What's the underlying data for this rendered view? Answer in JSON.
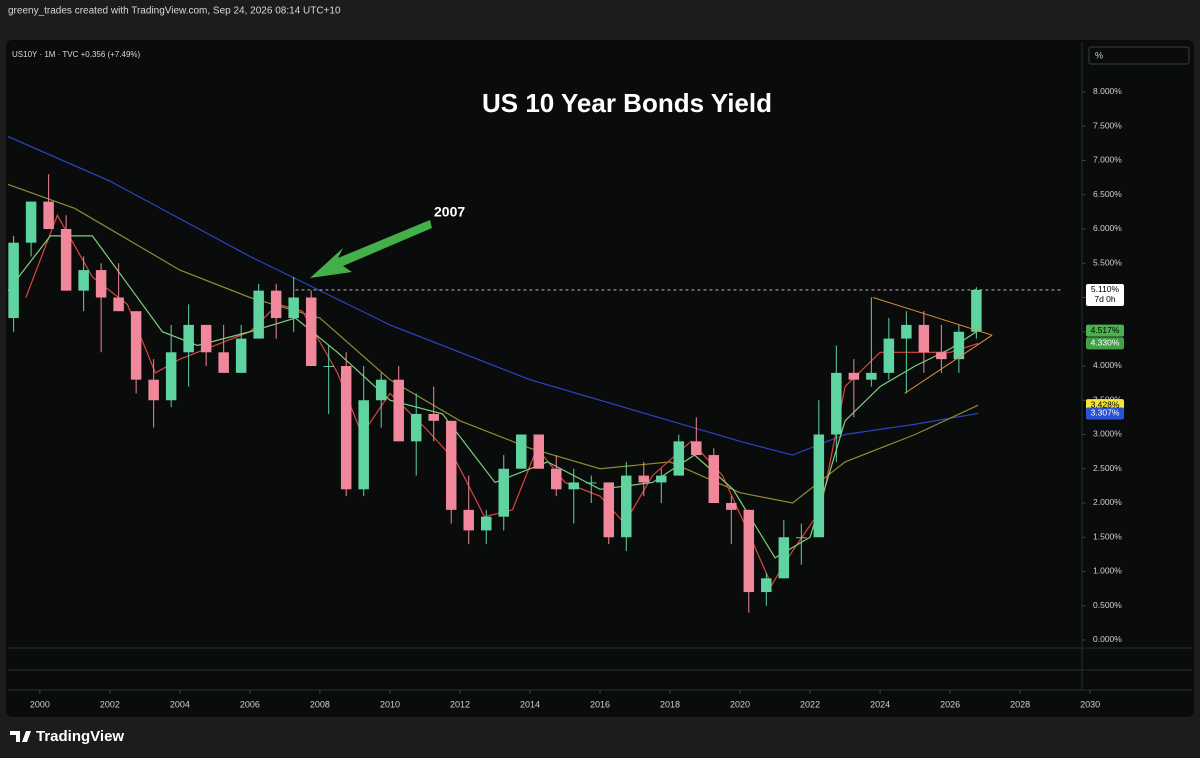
{
  "header": {
    "credit": "greeny_trades created with TradingView.com, Sep 24, 2026 08:14 UTC+10"
  },
  "toolbar": {
    "unit": "%"
  },
  "chart_data": {
    "type": "candlestick",
    "symbol": "US10Y · 1M · TVC  +0.356 (+7.49%)",
    "title": "US 10 Year Bonds Yield",
    "annotation": "2007",
    "up_color": "#5fd3a0",
    "down_color": "#f0879a",
    "candles": {
      "x": [
        1999.25,
        1999.75,
        2000.25,
        2000.75,
        2001.25,
        2001.75,
        2002.25,
        2002.75,
        2003.25,
        2003.75,
        2004.25,
        2004.75,
        2005.25,
        2005.75,
        2006.25,
        2006.75,
        2007.25,
        2007.75,
        2008.25,
        2008.75,
        2009.25,
        2009.75,
        2010.25,
        2010.75,
        2011.25,
        2011.75,
        2012.25,
        2012.75,
        2013.25,
        2013.75,
        2014.25,
        2014.75,
        2015.25,
        2015.75,
        2016.25,
        2016.75,
        2017.25,
        2017.75,
        2018.25,
        2018.75,
        2019.25,
        2019.75,
        2020.25,
        2020.75,
        2021.25,
        2021.75,
        2022.25,
        2022.75,
        2023.25,
        2023.75,
        2024.25,
        2024.75,
        2025.25,
        2025.75,
        2026.25,
        2026.75
      ],
      "open": [
        4.7,
        5.8,
        6.4,
        6.0,
        5.1,
        5.4,
        5.0,
        4.8,
        3.8,
        3.5,
        4.2,
        4.6,
        4.2,
        3.9,
        4.4,
        5.1,
        4.7,
        5.0,
        4.0,
        4.0,
        2.2,
        3.5,
        3.8,
        2.9,
        3.3,
        3.2,
        1.9,
        1.6,
        1.8,
        2.5,
        3.0,
        2.5,
        2.2,
        2.3,
        2.3,
        1.5,
        2.4,
        2.3,
        2.4,
        2.9,
        2.7,
        2.0,
        1.9,
        0.7,
        0.9,
        1.5,
        1.5,
        3.0,
        3.9,
        3.8,
        3.9,
        4.4,
        4.6,
        4.2,
        4.1,
        4.5
      ],
      "high": [
        5.9,
        6.4,
        6.8,
        6.2,
        5.6,
        5.5,
        5.5,
        4.8,
        4.1,
        4.6,
        4.9,
        4.6,
        4.6,
        4.6,
        5.2,
        5.2,
        5.3,
        5.1,
        4.3,
        4.2,
        4.0,
        3.9,
        4.0,
        3.6,
        3.7,
        3.2,
        2.4,
        1.9,
        2.7,
        3.0,
        3.0,
        2.7,
        2.5,
        2.4,
        2.3,
        2.6,
        2.6,
        2.5,
        3.0,
        3.25,
        2.8,
        2.1,
        1.9,
        0.98,
        1.75,
        1.7,
        3.5,
        4.3,
        4.1,
        5.0,
        4.7,
        4.8,
        4.8,
        4.6,
        4.6,
        5.15
      ],
      "low": [
        4.5,
        5.6,
        6.0,
        5.1,
        4.8,
        4.2,
        4.8,
        3.6,
        3.1,
        3.4,
        3.7,
        4.0,
        3.9,
        3.9,
        4.4,
        4.4,
        4.5,
        4.0,
        3.3,
        2.1,
        2.1,
        3.1,
        2.9,
        2.4,
        2.9,
        1.7,
        1.4,
        1.4,
        1.6,
        2.5,
        2.5,
        2.1,
        1.7,
        2.0,
        1.4,
        1.3,
        2.1,
        2.0,
        2.4,
        2.7,
        2.0,
        1.4,
        0.4,
        0.5,
        0.9,
        1.1,
        1.5,
        2.6,
        3.25,
        3.7,
        3.8,
        3.6,
        3.9,
        3.9,
        3.9,
        4.4
      ],
      "close": [
        5.8,
        6.4,
        6.0,
        5.1,
        5.4,
        5.0,
        4.8,
        3.8,
        3.5,
        4.2,
        4.6,
        4.2,
        3.9,
        4.4,
        5.1,
        4.7,
        5.0,
        4.0,
        4.0,
        2.2,
        3.5,
        3.8,
        2.9,
        3.3,
        3.2,
        1.9,
        1.6,
        1.8,
        2.5,
        3.0,
        2.5,
        2.2,
        2.3,
        2.3,
        1.5,
        2.4,
        2.3,
        2.4,
        2.9,
        2.7,
        2.0,
        1.9,
        0.7,
        0.9,
        1.5,
        1.5,
        3.0,
        3.9,
        3.8,
        3.9,
        4.4,
        4.6,
        4.2,
        4.1,
        4.5,
        5.11
      ]
    },
    "series": [
      {
        "color": "#2a45c6",
        "x": [
          1999.09,
          2002,
          2006,
          2010,
          2014,
          2018,
          2020,
          2021.5,
          2023,
          2025,
          2026.8
        ],
        "values": [
          7.35,
          6.7,
          5.6,
          4.6,
          3.8,
          3.2,
          2.9,
          2.7,
          3.0,
          3.15,
          3.307
        ]
      },
      {
        "color": "#8c8c34",
        "x": [
          1999.09,
          2001,
          2004,
          2006,
          2008,
          2010,
          2012,
          2014,
          2016,
          2018,
          2020,
          2021.5,
          2023,
          2025,
          2026.8
        ],
        "values": [
          6.65,
          6.3,
          5.4,
          5.0,
          4.7,
          3.8,
          3.2,
          2.8,
          2.5,
          2.6,
          2.15,
          2.0,
          2.6,
          3.0,
          3.428
        ]
      },
      {
        "color": "#d9443f",
        "x": [
          1999.6,
          2000.5,
          2001.5,
          2002.5,
          2003.3,
          2004,
          2005,
          2006,
          2006.8,
          2007.5,
          2008.5,
          2009.2,
          2010,
          2011,
          2011.9,
          2012.7,
          2013.5,
          2014.2,
          2015,
          2016,
          2016.7,
          2017.5,
          2018.6,
          2019.5,
          2020.3,
          2020.9,
          2021.5,
          2022.3,
          2023,
          2024,
          2025,
          2026,
          2026.8
        ],
        "values": [
          5.0,
          6.2,
          5.3,
          4.9,
          3.9,
          4.1,
          4.3,
          4.5,
          4.9,
          4.8,
          3.9,
          3.0,
          3.6,
          3.1,
          2.6,
          1.8,
          1.9,
          2.8,
          2.3,
          2.1,
          1.7,
          2.4,
          2.9,
          2.4,
          1.5,
          0.8,
          1.3,
          1.9,
          3.7,
          4.2,
          4.2,
          4.2,
          4.33
        ]
      },
      {
        "color": "#7fd07c",
        "x": [
          1999.09,
          2000.3,
          2001.5,
          2002.5,
          2003.5,
          2004.5,
          2006,
          2007.3,
          2008.5,
          2010,
          2011.5,
          2013,
          2014.5,
          2016,
          2017.5,
          2018.7,
          2019.8,
          2021,
          2022,
          2023,
          2024,
          2025,
          2026,
          2026.8
        ],
        "values": [
          5.1,
          5.9,
          5.9,
          5.2,
          4.5,
          4.3,
          4.5,
          4.7,
          4.2,
          3.5,
          3.3,
          2.3,
          2.6,
          2.2,
          2.3,
          2.7,
          2.2,
          1.2,
          1.5,
          3.2,
          3.7,
          4.0,
          4.25,
          4.517
        ]
      }
    ],
    "level": {
      "value": 5.11,
      "x": [
        2007.3,
        2029.2
      ]
    },
    "trendlines": [
      {
        "color": "#e0913a",
        "x": [
          2023.8,
          2027.2
        ],
        "values": [
          5.0,
          4.45
        ]
      },
      {
        "color": "#e0913a",
        "x": [
          2024.7,
          2027.2
        ],
        "values": [
          3.6,
          4.45
        ]
      }
    ],
    "price_labels": [
      {
        "value": 5.11,
        "label": "5.110%",
        "color": "#ffffff",
        "text_color": "#000000"
      },
      {
        "value": 4.517,
        "label": "4.517%",
        "color": "#4caf50",
        "text_color": "#000000"
      },
      {
        "value": 4.33,
        "label": "4.330%",
        "color": "#43a047",
        "text_color": "#ffffff"
      },
      {
        "value": 3.428,
        "label": "3.428%",
        "color": "#f5e43a",
        "text_color": "#000000"
      },
      {
        "value": 3.307,
        "label": "3.307%",
        "color": "#2a52d6",
        "text_color": "#ffffff"
      }
    ],
    "countdown": "7d 0h",
    "xlim": [
      1999.09,
      2029.71
    ],
    "ylim": [
      -0.073,
      8.686
    ],
    "xticks": [
      2000,
      2002,
      2004,
      2006,
      2008,
      2010,
      2012,
      2014,
      2016,
      2018,
      2020,
      2022,
      2024,
      2026,
      2028,
      2030
    ],
    "yticks": [
      {
        "value": 0,
        "label": "0.000%"
      },
      {
        "value": 0.5,
        "label": "0.500%"
      },
      {
        "value": 1,
        "label": "1.000%"
      },
      {
        "value": 1.5,
        "label": "1.500%"
      },
      {
        "value": 2,
        "label": "2.000%"
      },
      {
        "value": 2.5,
        "label": "2.500%"
      },
      {
        "value": 3,
        "label": "3.000%"
      },
      {
        "value": 3.5,
        "label": "3.500%"
      },
      {
        "value": 4,
        "label": "4.000%"
      },
      {
        "value": 4.5,
        "label": "4.500%"
      },
      {
        "value": 5,
        "label": "5.000%"
      },
      {
        "value": 5.5,
        "label": "5.500%"
      },
      {
        "value": 6,
        "label": "6.000%"
      },
      {
        "value": 6.5,
        "label": "6.500%"
      },
      {
        "value": 7,
        "label": "7.000%"
      },
      {
        "value": 7.5,
        "label": "7.500%"
      },
      {
        "value": 8,
        "label": "8.000%"
      }
    ]
  },
  "footer": {
    "brand": "TradingView"
  }
}
